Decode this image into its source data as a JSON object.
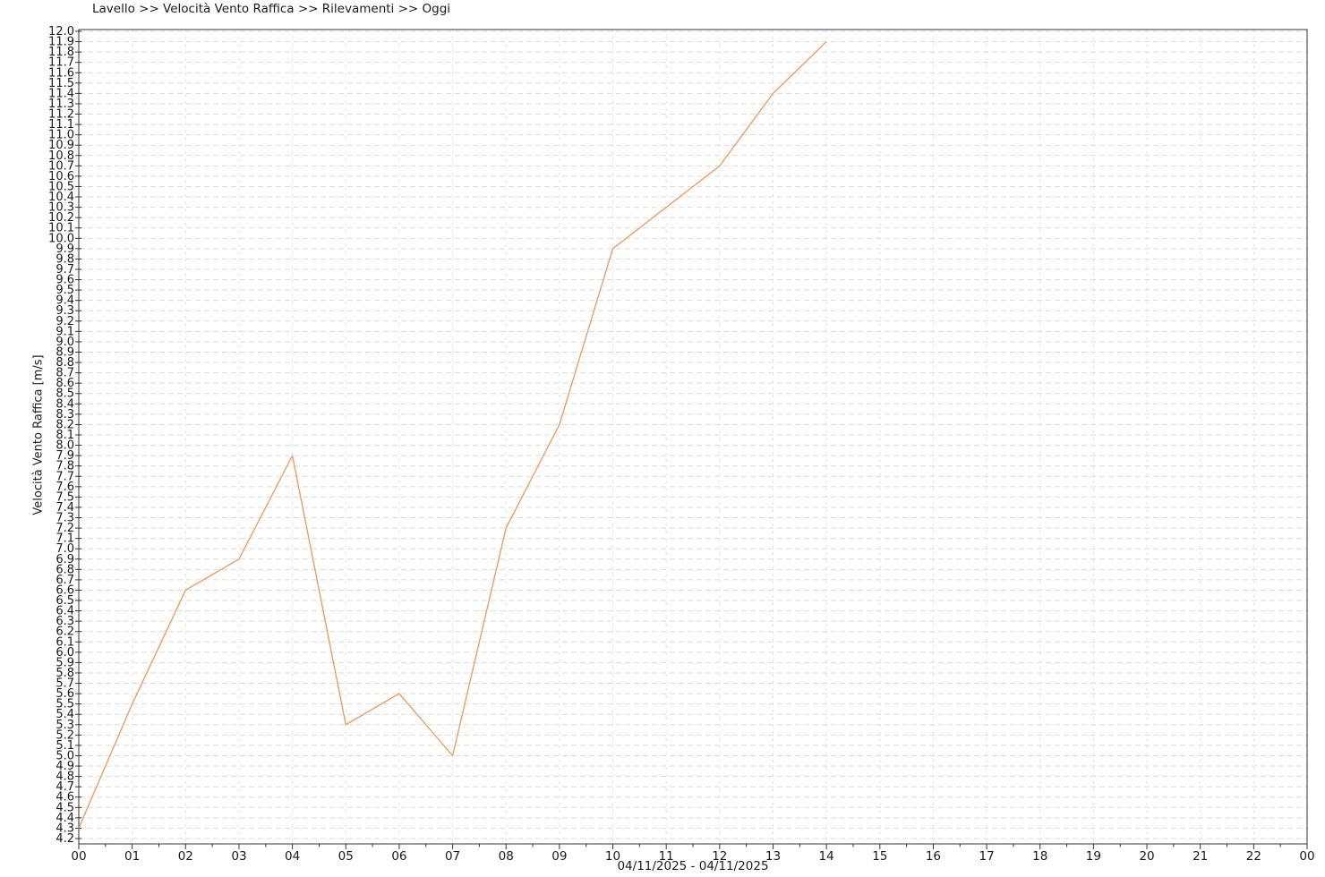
{
  "header": {
    "title": "Lavello >> Velocità Vento Raffica >> Rilevamenti >> Oggi"
  },
  "chart_data": {
    "type": "line",
    "title": "Lavello >> Velocità Vento Raffica >> Rilevamenti >> Oggi",
    "ylabel": "Velocità Vento Raffica [m/s]",
    "xlabel": "04/11/2025 - 04/11/2025",
    "x_tick_labels": [
      "00",
      "01",
      "02",
      "03",
      "04",
      "05",
      "06",
      "07",
      "08",
      "09",
      "10",
      "11",
      "12",
      "13",
      "14",
      "15",
      "16",
      "17",
      "18",
      "19",
      "20",
      "21",
      "22",
      "00"
    ],
    "ylim": [
      4.2,
      12.0
    ],
    "y_tick_step": 0.1,
    "grid": true,
    "legend": "none",
    "series": [
      {
        "name": "Velocità Vento Raffica",
        "color": "#F0975A",
        "x": [
          0,
          1,
          2,
          3,
          4,
          5,
          6,
          7,
          8,
          9,
          10,
          11,
          12,
          13,
          14
        ],
        "values": [
          4.3,
          5.5,
          6.6,
          6.9,
          7.9,
          5.3,
          5.6,
          5.0,
          7.2,
          8.2,
          9.9,
          10.3,
          10.7,
          11.4,
          11.9
        ]
      }
    ],
    "colors": {
      "line": "#F0975A",
      "h_grid": "#dcdcdc",
      "v_grid": "#e2e2e2",
      "axis": "#333333",
      "text": "#1a1a1a",
      "background": "#ffffff"
    }
  }
}
